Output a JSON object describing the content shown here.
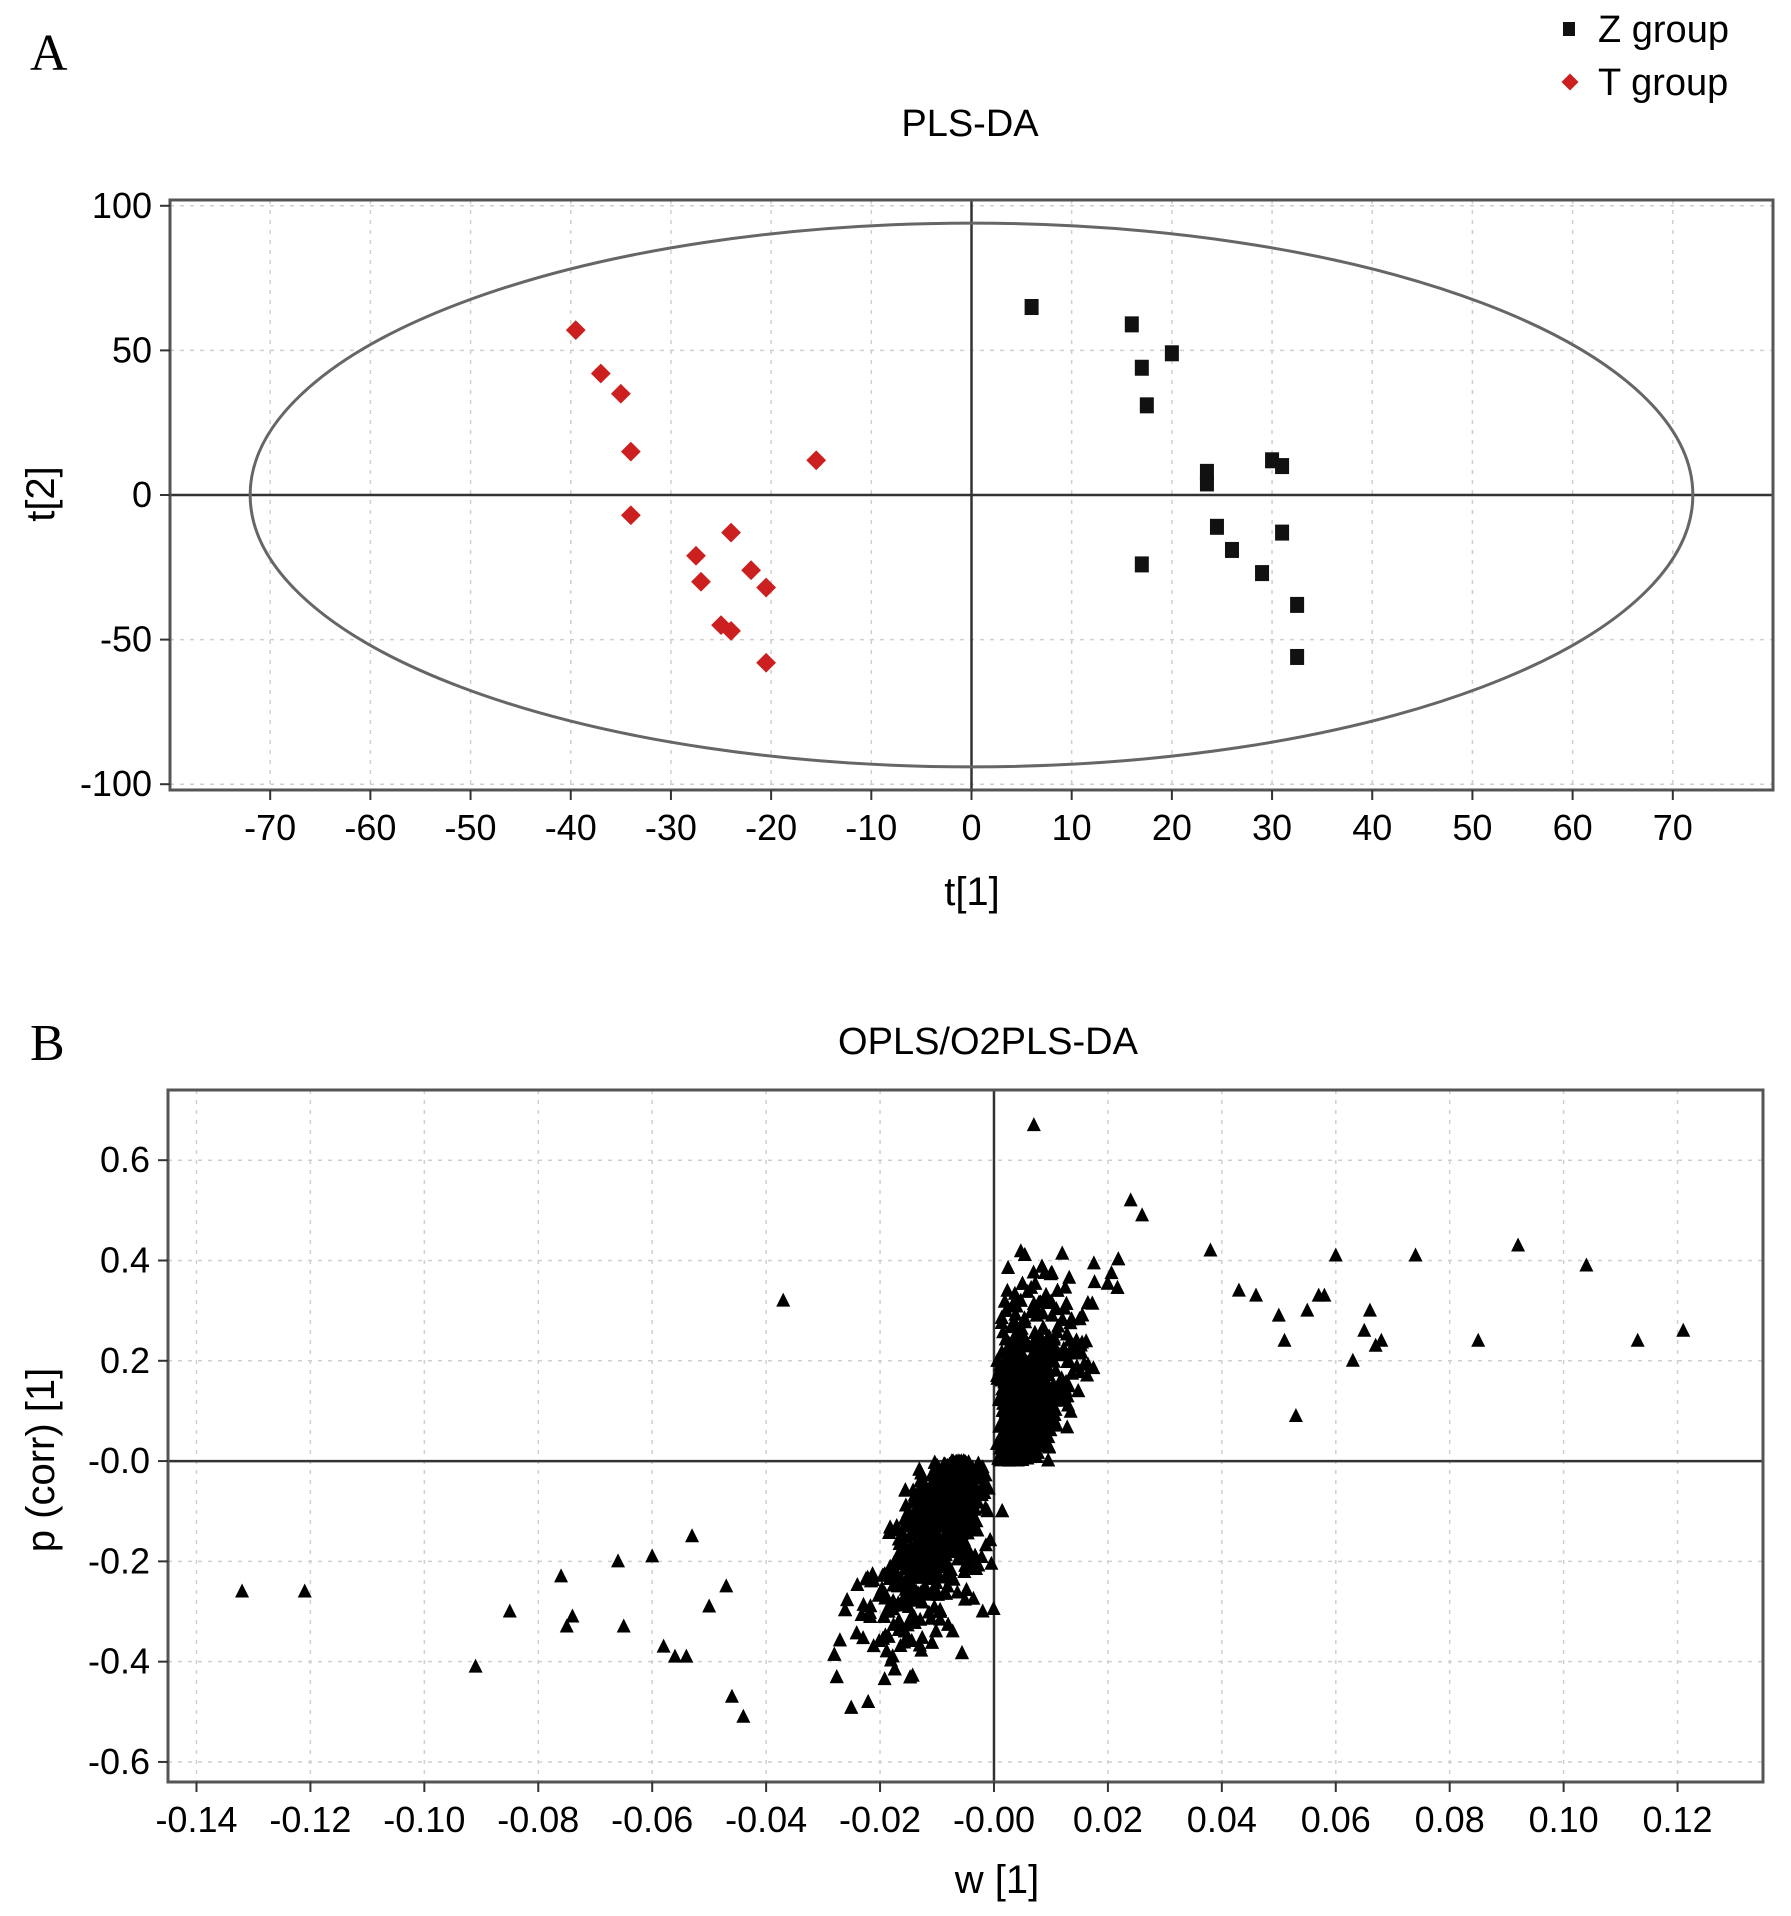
{
  "panelA": {
    "label": "A",
    "legend": [
      {
        "name": "Z group",
        "color": "#111111",
        "marker": "square"
      },
      {
        "name": "T group",
        "color": "#cc1f1f",
        "marker": "diamond"
      }
    ]
  },
  "panelB": {
    "label": "B"
  },
  "chart_data": [
    {
      "type": "scatter",
      "title": "PLS-DA",
      "xlabel": "t[1]",
      "ylabel": "t[2]",
      "xlim": [
        -80,
        80
      ],
      "ylim": [
        -102,
        102
      ],
      "xticks": [
        -70,
        -60,
        -50,
        -40,
        -30,
        -20,
        -10,
        0,
        10,
        20,
        30,
        40,
        50,
        60,
        70
      ],
      "yticks": [
        100,
        50,
        0,
        -50,
        -100
      ],
      "grid": true,
      "legend_position": "top-right",
      "ellipse": {
        "rx": 72,
        "ry": 94
      },
      "series": [
        {
          "name": "Z group",
          "color": "#111111",
          "marker": "square",
          "points": [
            [
              6,
              65
            ],
            [
              16,
              59
            ],
            [
              17,
              44
            ],
            [
              17.5,
              31
            ],
            [
              20,
              49
            ],
            [
              23.5,
              8
            ],
            [
              23.5,
              4
            ],
            [
              24.5,
              -11
            ],
            [
              26,
              -19
            ],
            [
              29,
              -27
            ],
            [
              30,
              12
            ],
            [
              31,
              10
            ],
            [
              31,
              -13
            ],
            [
              32.5,
              -38
            ],
            [
              32.5,
              -56
            ],
            [
              17,
              -24
            ]
          ]
        },
        {
          "name": "T group",
          "color": "#cc1f1f",
          "marker": "diamond",
          "points": [
            [
              -39.5,
              57
            ],
            [
              -37,
              42
            ],
            [
              -35,
              35
            ],
            [
              -34,
              15
            ],
            [
              -34,
              -7
            ],
            [
              -27.5,
              -21
            ],
            [
              -27,
              -30
            ],
            [
              -25,
              -45
            ],
            [
              -24,
              -47
            ],
            [
              -24,
              -13
            ],
            [
              -22,
              -26
            ],
            [
              -20.5,
              -32
            ],
            [
              -20.5,
              -58
            ],
            [
              -15.5,
              12
            ]
          ]
        }
      ]
    },
    {
      "type": "scatter",
      "title": "OPLS/O2PLS-DA",
      "xlabel": "w [1]",
      "ylabel": "p (corr) [1]",
      "xlim": [
        -0.145,
        0.135
      ],
      "ylim": [
        -0.64,
        0.74
      ],
      "xticks": [
        -0.14,
        -0.12,
        -0.1,
        -0.08,
        -0.06,
        -0.04,
        -0.02,
        0,
        0.02,
        0.04,
        0.06,
        0.08,
        0.1,
        0.12
      ],
      "xtick_labels": [
        "-0.14",
        "-0.12",
        "-0.10",
        "-0.08",
        "-0.06",
        "-0.04",
        "-0.02",
        "-0.00",
        "0.02",
        "0.04",
        "0.06",
        "0.08",
        "0.10",
        "0.12"
      ],
      "yticks": [
        0.6,
        0.4,
        0.2,
        0,
        -0.2,
        -0.4,
        -0.6
      ],
      "ytick_labels": [
        "0.6",
        "0.4",
        "0.2",
        "-0.0",
        "-0.2",
        "-0.4",
        "-0.6"
      ],
      "grid": true,
      "marker": "triangle",
      "color": "#000000",
      "dense_cluster": {
        "approx_points": 2400,
        "x_range": [
          -0.04,
          0.035
        ],
        "y_range": [
          -0.6,
          0.55
        ]
      },
      "outliers": [
        [
          -0.132,
          -0.26
        ],
        [
          -0.121,
          -0.26
        ],
        [
          -0.091,
          -0.41
        ],
        [
          -0.085,
          -0.3
        ],
        [
          -0.076,
          -0.23
        ],
        [
          -0.075,
          -0.33
        ],
        [
          -0.074,
          -0.31
        ],
        [
          -0.066,
          -0.2
        ],
        [
          -0.065,
          -0.33
        ],
        [
          -0.06,
          -0.19
        ],
        [
          -0.058,
          -0.37
        ],
        [
          -0.056,
          -0.39
        ],
        [
          -0.054,
          -0.39
        ],
        [
          -0.053,
          -0.15
        ],
        [
          -0.05,
          -0.29
        ],
        [
          -0.047,
          -0.25
        ],
        [
          -0.046,
          -0.47
        ],
        [
          -0.044,
          -0.51
        ],
        [
          -0.037,
          0.32
        ],
        [
          0.007,
          0.67
        ],
        [
          0.024,
          0.52
        ],
        [
          0.026,
          0.49
        ],
        [
          0.038,
          0.42
        ],
        [
          0.043,
          0.34
        ],
        [
          0.046,
          0.33
        ],
        [
          0.05,
          0.29
        ],
        [
          0.051,
          0.24
        ],
        [
          0.053,
          0.09
        ],
        [
          0.055,
          0.3
        ],
        [
          0.057,
          0.33
        ],
        [
          0.058,
          0.33
        ],
        [
          0.06,
          0.41
        ],
        [
          0.063,
          0.2
        ],
        [
          0.065,
          0.26
        ],
        [
          0.066,
          0.3
        ],
        [
          0.067,
          0.23
        ],
        [
          0.068,
          0.24
        ],
        [
          0.074,
          0.41
        ],
        [
          0.085,
          0.24
        ],
        [
          0.092,
          0.43
        ],
        [
          0.104,
          0.39
        ],
        [
          0.113,
          0.24
        ],
        [
          0.121,
          0.26
        ]
      ]
    }
  ]
}
